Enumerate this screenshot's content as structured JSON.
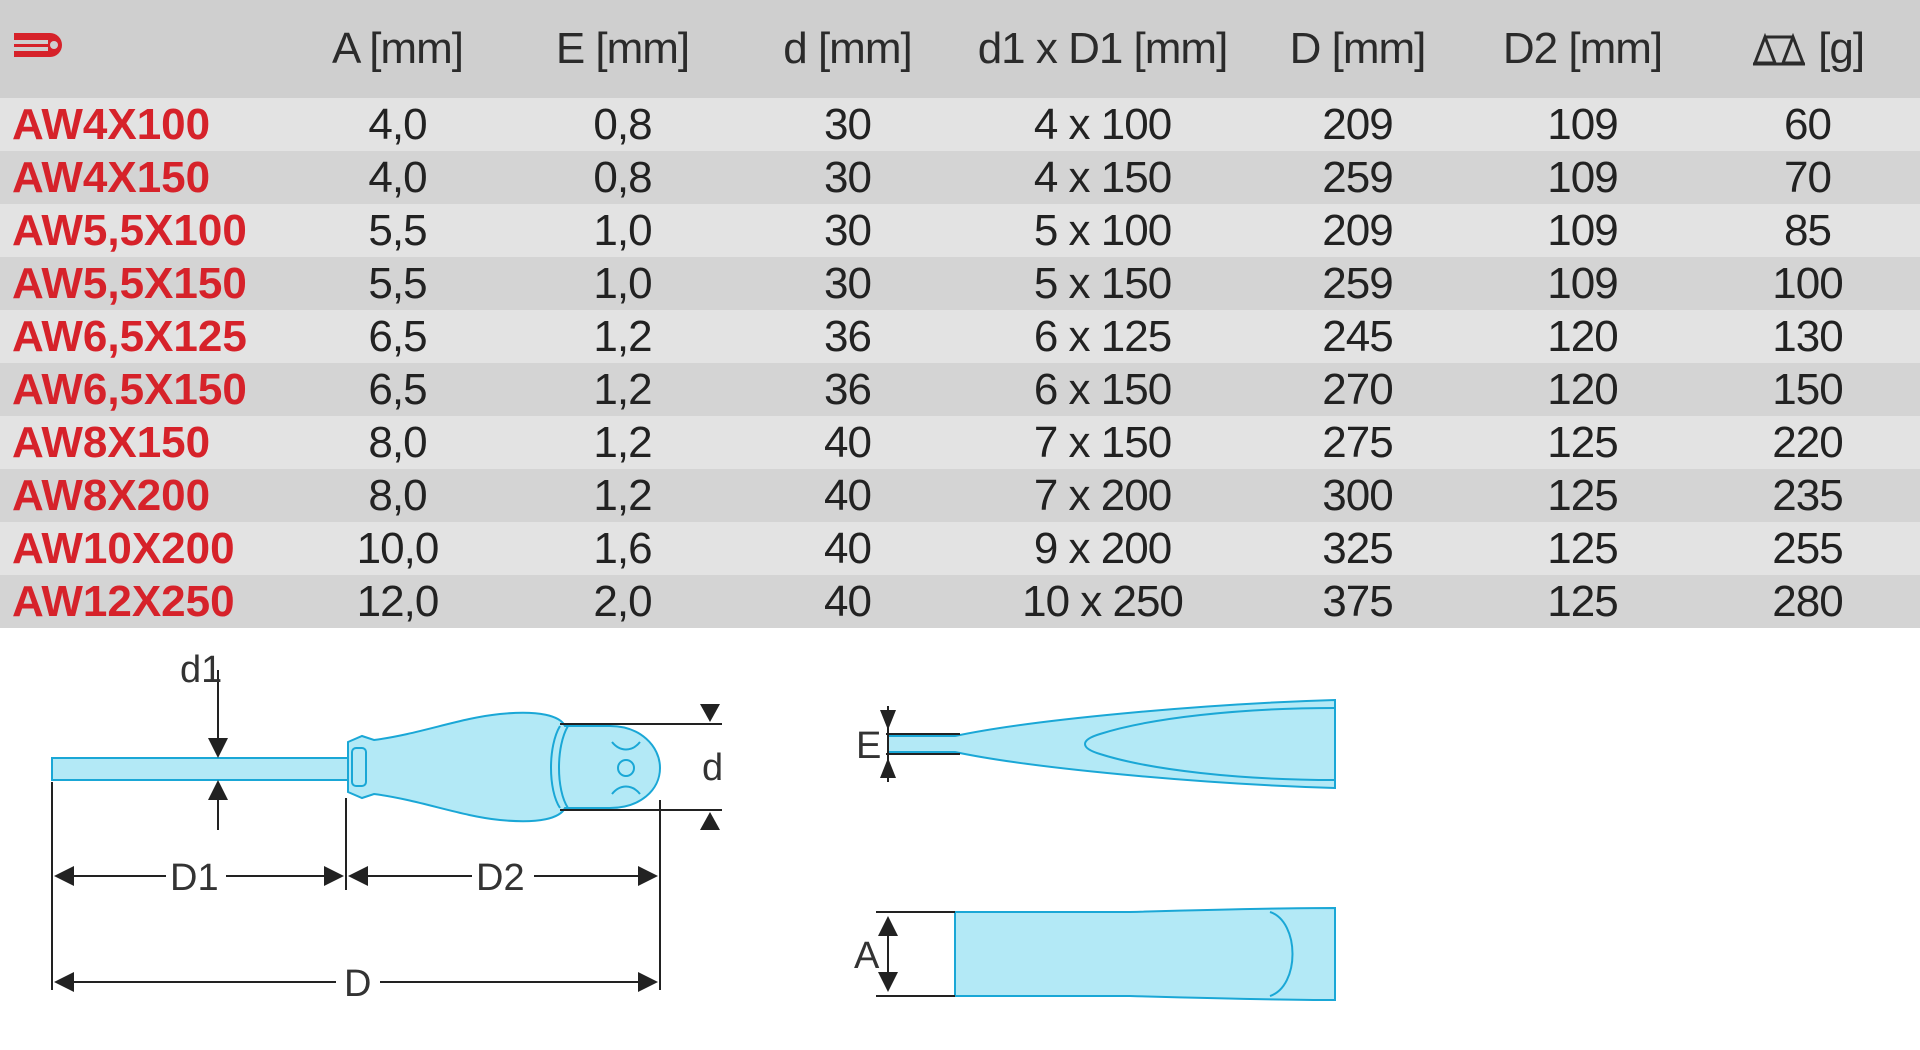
{
  "table": {
    "header": {
      "ref_icon": "facom-logo-icon",
      "columns": [
        "A [mm]",
        "E [mm]",
        "d [mm]",
        "d1 x D1 [mm]",
        "D [mm]",
        "D2 [mm]",
        "[g]"
      ],
      "weight_icon": "balance-scale-icon",
      "accent_color": "#d6222a"
    },
    "rows": [
      {
        "ref": "AW4X100",
        "A": "4,0",
        "E": "0,8",
        "d": "30",
        "d1xD1": "4 x 100",
        "D": "209",
        "D2": "109",
        "g": "60"
      },
      {
        "ref": "AW4X150",
        "A": "4,0",
        "E": "0,8",
        "d": "30",
        "d1xD1": "4 x 150",
        "D": "259",
        "D2": "109",
        "g": "70"
      },
      {
        "ref": "AW5,5X100",
        "A": "5,5",
        "E": "1,0",
        "d": "30",
        "d1xD1": "5 x 100",
        "D": "209",
        "D2": "109",
        "g": "85"
      },
      {
        "ref": "AW5,5X150",
        "A": "5,5",
        "E": "1,0",
        "d": "30",
        "d1xD1": "5 x 150",
        "D": "259",
        "D2": "109",
        "g": "100"
      },
      {
        "ref": "AW6,5X125",
        "A": "6,5",
        "E": "1,2",
        "d": "36",
        "d1xD1": "6 x 125",
        "D": "245",
        "D2": "120",
        "g": "130"
      },
      {
        "ref": "AW6,5X150",
        "A": "6,5",
        "E": "1,2",
        "d": "36",
        "d1xD1": "6 x 150",
        "D": "270",
        "D2": "120",
        "g": "150"
      },
      {
        "ref": "AW8X150",
        "A": "8,0",
        "E": "1,2",
        "d": "40",
        "d1xD1": "7 x 150",
        "D": "275",
        "D2": "125",
        "g": "220"
      },
      {
        "ref": "AW8X200",
        "A": "8,0",
        "E": "1,2",
        "d": "40",
        "d1xD1": "7 x 200",
        "D": "300",
        "D2": "125",
        "g": "235"
      },
      {
        "ref": "AW10X200",
        "A": "10,0",
        "E": "1,6",
        "d": "40",
        "d1xD1": "9 x 200",
        "D": "325",
        "D2": "125",
        "g": "255"
      },
      {
        "ref": "AW12X250",
        "A": "12,0",
        "E": "2,0",
        "d": "40",
        "d1xD1": "10 x 250",
        "D": "375",
        "D2": "125",
        "g": "280"
      }
    ]
  },
  "diagram": {
    "fill_color": "#b3e9f6",
    "stroke_color": "#1aa7d6",
    "labels": {
      "d1": "d1",
      "d": "d",
      "D1": "D1",
      "D2": "D2",
      "D": "D",
      "E": "E",
      "A": "A"
    }
  }
}
